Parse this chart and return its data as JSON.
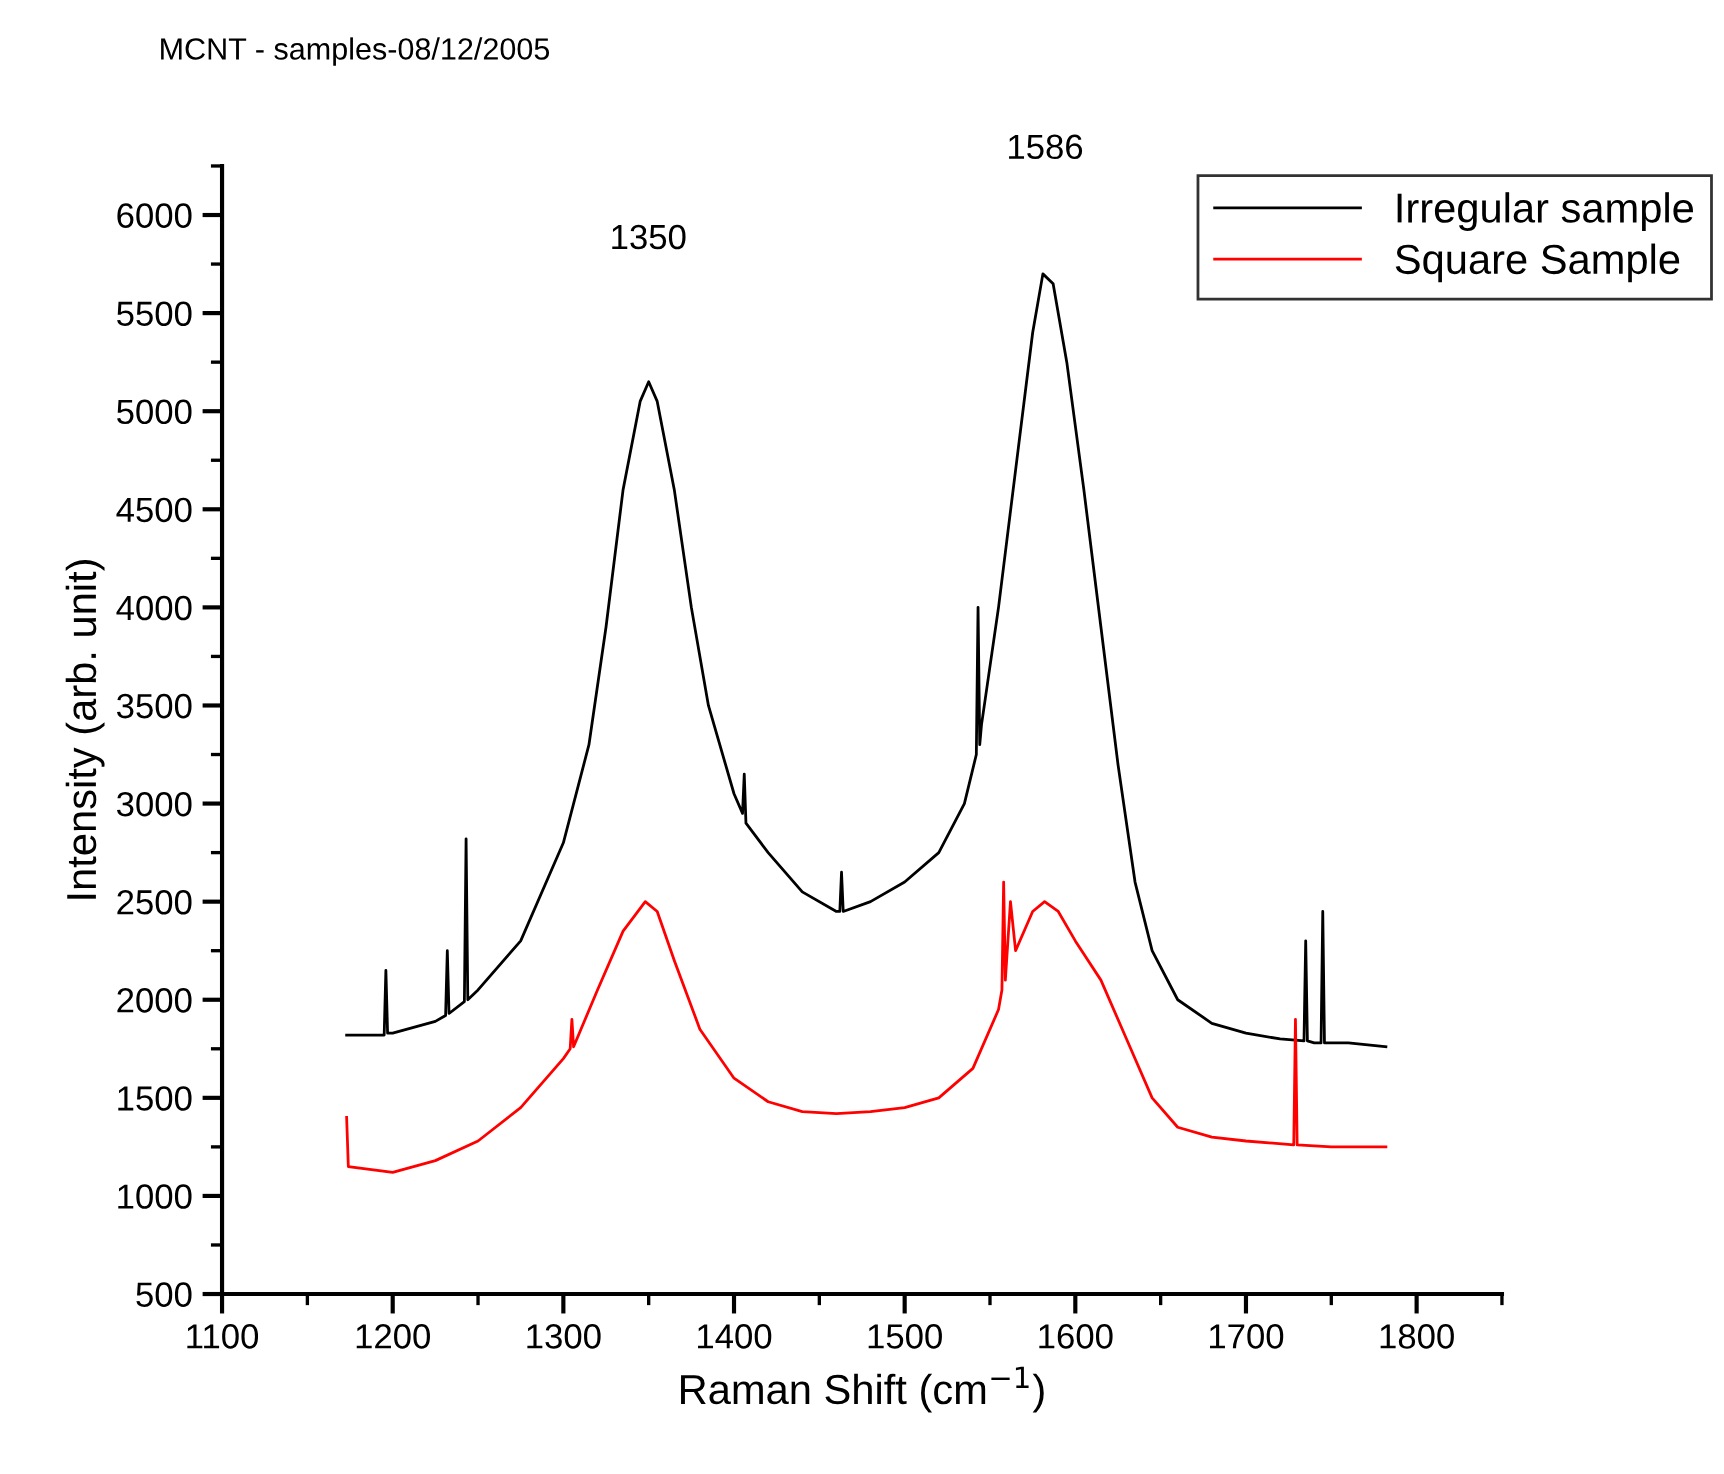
{
  "chart_data": {
    "type": "line",
    "title": "MCNT - samples-08/12/2005",
    "xlabel": "Raman Shift (cm$^{−1}$)",
    "ylabel": "Intensity (arb. unit)",
    "xlim": [
      1100,
      1850
    ],
    "ylim": [
      500,
      6250
    ],
    "xticks": [
      1100,
      1200,
      1300,
      1400,
      1500,
      1600,
      1700,
      1800,
      {
        "value": 1150,
        "label": null
      },
      {
        "value": 1250,
        "label": null
      },
      {
        "value": 1350,
        "label": null
      },
      {
        "value": 1450,
        "label": null
      },
      {
        "value": 1550,
        "label": null
      },
      {
        "value": 1650,
        "label": null
      },
      {
        "value": 1750,
        "label": null
      },
      {
        "value": 1850,
        "label": null
      }
    ],
    "yticks": [
      500,
      1000,
      1500,
      2000,
      2500,
      3000,
      3500,
      4000,
      4500,
      5000,
      5500,
      6000,
      {
        "value": 750,
        "label": null
      },
      {
        "value": 1250,
        "label": null
      },
      {
        "value": 1750,
        "label": null
      },
      {
        "value": 2250,
        "label": null
      },
      {
        "value": 2750,
        "label": null
      },
      {
        "value": 3250,
        "label": null
      },
      {
        "value": 3750,
        "label": null
      },
      {
        "value": 4250,
        "label": null
      },
      {
        "value": 4750,
        "label": null
      },
      {
        "value": 5250,
        "label": null
      },
      {
        "value": 5750,
        "label": null
      },
      {
        "value": 6250,
        "label": null
      }
    ],
    "grid": false,
    "legend": "top right",
    "marker": "none",
    "line_style": "solid",
    "annotations": [
      "1350",
      "1586"
    ],
    "series": [
      {
        "name": "Irregular sample",
        "color": "#000000",
        "x": [
          1173,
          1195,
          1196,
          1197,
          1200,
          1225,
          1231,
          1232,
          1233,
          1242,
          1243,
          1244,
          1250,
          1275,
          1300,
          1315,
          1325,
          1335,
          1345,
          1350,
          1355,
          1365,
          1375,
          1385,
          1400,
          1405,
          1406,
          1407,
          1420,
          1440,
          1460,
          1462,
          1463,
          1464,
          1480,
          1500,
          1520,
          1535,
          1542,
          1543,
          1544,
          1545,
          1555,
          1565,
          1575,
          1581,
          1587,
          1595,
          1605,
          1615,
          1625,
          1635,
          1645,
          1660,
          1680,
          1700,
          1720,
          1734,
          1735,
          1736,
          1740,
          1744,
          1745,
          1746,
          1760,
          1782
        ],
        "values": [
          1820,
          1820,
          2150,
          1830,
          1830,
          1890,
          1920,
          2250,
          1930,
          1990,
          2820,
          2000,
          2050,
          2300,
          2800,
          3300,
          3900,
          4600,
          5050,
          5150,
          5050,
          4600,
          4000,
          3500,
          3050,
          2950,
          3150,
          2900,
          2750,
          2550,
          2450,
          2450,
          2650,
          2450,
          2500,
          2600,
          2750,
          3000,
          3250,
          4000,
          3300,
          3400,
          4000,
          4700,
          5400,
          5700,
          5650,
          5250,
          4600,
          3900,
          3200,
          2600,
          2250,
          2000,
          1880,
          1830,
          1800,
          1790,
          2300,
          1790,
          1780,
          1780,
          2450,
          1780,
          1780,
          1760
        ]
      },
      {
        "name": "Square Sample",
        "color": "#ff0000",
        "x": [
          1173,
          1174,
          1200,
          1225,
          1250,
          1275,
          1300,
          1304,
          1305,
          1306,
          1320,
          1335,
          1348,
          1355,
          1365,
          1380,
          1400,
          1420,
          1440,
          1460,
          1480,
          1500,
          1520,
          1540,
          1555,
          1557,
          1558,
          1559,
          1562,
          1565,
          1575,
          1582,
          1590,
          1600,
          1615,
          1630,
          1645,
          1660,
          1680,
          1700,
          1728,
          1729,
          1730,
          1750,
          1782
        ],
        "values": [
          1400,
          1150,
          1120,
          1180,
          1280,
          1450,
          1700,
          1750,
          1900,
          1760,
          2050,
          2350,
          2500,
          2450,
          2200,
          1850,
          1600,
          1480,
          1430,
          1420,
          1430,
          1450,
          1500,
          1650,
          1950,
          2050,
          2600,
          2100,
          2500,
          2250,
          2450,
          2500,
          2450,
          2300,
          2100,
          1800,
          1500,
          1350,
          1300,
          1280,
          1260,
          1900,
          1260,
          1250,
          1250
        ]
      }
    ]
  }
}
